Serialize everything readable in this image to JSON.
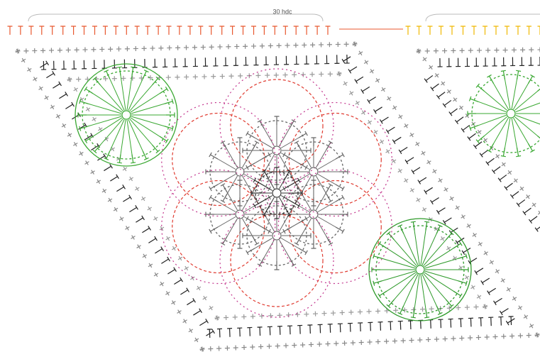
{
  "diagram": {
    "label": "30 hdc"
  }
}
